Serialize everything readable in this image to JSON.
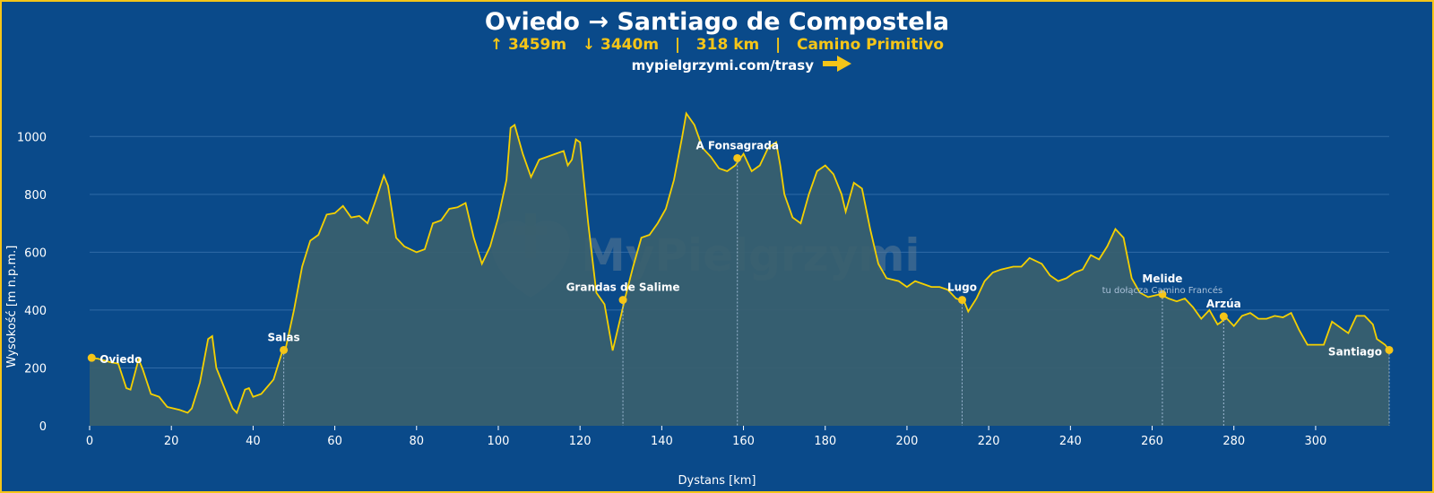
{
  "title": "Oviedo → Santiago de Compostela",
  "subtitle": {
    "ascent": "↑ 3459m",
    "descent": "↓ 3440m",
    "sep1": "|",
    "distance": "318 km",
    "sep2": "|",
    "route": "Camino Primitivo"
  },
  "link": "mypielgrzymi.com/trasy",
  "watermark": "MyPielgrzymi",
  "colors": {
    "background": "#0a4a8a",
    "border": "#f5c518",
    "line": "#f5d000",
    "fill": "#3a5f6e",
    "accent": "#f5c518",
    "grid": "#2f6aa6"
  },
  "icons": {
    "arrow": "arrow-right-icon",
    "watermark_logo": "heart-cross-logo"
  },
  "chart_data": {
    "type": "area",
    "xlabel": "Dystans [km]",
    "ylabel": "Wysokość [m n.p.m.]",
    "xlim": [
      0,
      318
    ],
    "ylim": [
      0,
      1100
    ],
    "xticks": [
      0,
      20,
      40,
      60,
      80,
      100,
      120,
      140,
      160,
      180,
      200,
      220,
      240,
      260,
      280,
      300
    ],
    "yticks": [
      0,
      200,
      400,
      600,
      800,
      1000
    ],
    "grid": true,
    "profile": [
      [
        0,
        235
      ],
      [
        2,
        232
      ],
      [
        5,
        220
      ],
      [
        7,
        215
      ],
      [
        9,
        130
      ],
      [
        10,
        125
      ],
      [
        12,
        230
      ],
      [
        13,
        195
      ],
      [
        15,
        110
      ],
      [
        17,
        100
      ],
      [
        19,
        65
      ],
      [
        22,
        55
      ],
      [
        24,
        45
      ],
      [
        25,
        60
      ],
      [
        27,
        150
      ],
      [
        29,
        300
      ],
      [
        30,
        310
      ],
      [
        31,
        200
      ],
      [
        33,
        130
      ],
      [
        35,
        60
      ],
      [
        36,
        45
      ],
      [
        38,
        125
      ],
      [
        39,
        130
      ],
      [
        40,
        100
      ],
      [
        42,
        110
      ],
      [
        45,
        160
      ],
      [
        47,
        250
      ],
      [
        48,
        270
      ],
      [
        50,
        400
      ],
      [
        52,
        550
      ],
      [
        54,
        640
      ],
      [
        56,
        660
      ],
      [
        58,
        730
      ],
      [
        60,
        735
      ],
      [
        62,
        760
      ],
      [
        64,
        720
      ],
      [
        66,
        725
      ],
      [
        68,
        700
      ],
      [
        70,
        780
      ],
      [
        72,
        865
      ],
      [
        73,
        830
      ],
      [
        75,
        650
      ],
      [
        77,
        620
      ],
      [
        80,
        600
      ],
      [
        82,
        610
      ],
      [
        84,
        700
      ],
      [
        86,
        710
      ],
      [
        88,
        750
      ],
      [
        90,
        755
      ],
      [
        92,
        770
      ],
      [
        94,
        650
      ],
      [
        96,
        560
      ],
      [
        98,
        620
      ],
      [
        100,
        720
      ],
      [
        102,
        850
      ],
      [
        103,
        1030
      ],
      [
        104,
        1040
      ],
      [
        106,
        940
      ],
      [
        108,
        860
      ],
      [
        110,
        920
      ],
      [
        112,
        930
      ],
      [
        114,
        940
      ],
      [
        116,
        950
      ],
      [
        117,
        900
      ],
      [
        118,
        920
      ],
      [
        119,
        990
      ],
      [
        120,
        980
      ],
      [
        122,
        700
      ],
      [
        124,
        460
      ],
      [
        126,
        420
      ],
      [
        128,
        260
      ],
      [
        130,
        380
      ],
      [
        131,
        440
      ],
      [
        133,
        550
      ],
      [
        135,
        650
      ],
      [
        137,
        660
      ],
      [
        139,
        700
      ],
      [
        141,
        750
      ],
      [
        143,
        850
      ],
      [
        145,
        1000
      ],
      [
        146,
        1080
      ],
      [
        148,
        1040
      ],
      [
        150,
        960
      ],
      [
        152,
        930
      ],
      [
        154,
        890
      ],
      [
        156,
        880
      ],
      [
        158,
        900
      ],
      [
        160,
        940
      ],
      [
        162,
        880
      ],
      [
        164,
        900
      ],
      [
        166,
        960
      ],
      [
        168,
        980
      ],
      [
        169,
        900
      ],
      [
        170,
        800
      ],
      [
        172,
        720
      ],
      [
        174,
        700
      ],
      [
        176,
        800
      ],
      [
        178,
        880
      ],
      [
        180,
        900
      ],
      [
        182,
        870
      ],
      [
        184,
        800
      ],
      [
        185,
        740
      ],
      [
        187,
        840
      ],
      [
        189,
        820
      ],
      [
        191,
        680
      ],
      [
        193,
        560
      ],
      [
        195,
        510
      ],
      [
        198,
        500
      ],
      [
        200,
        480
      ],
      [
        202,
        500
      ],
      [
        204,
        490
      ],
      [
        206,
        480
      ],
      [
        208,
        480
      ],
      [
        210,
        470
      ],
      [
        212,
        440
      ],
      [
        214,
        430
      ],
      [
        215,
        395
      ],
      [
        217,
        440
      ],
      [
        219,
        500
      ],
      [
        221,
        530
      ],
      [
        223,
        540
      ],
      [
        226,
        550
      ],
      [
        228,
        550
      ],
      [
        230,
        580
      ],
      [
        233,
        560
      ],
      [
        235,
        520
      ],
      [
        237,
        500
      ],
      [
        239,
        510
      ],
      [
        241,
        530
      ],
      [
        243,
        540
      ],
      [
        245,
        590
      ],
      [
        247,
        575
      ],
      [
        249,
        620
      ],
      [
        251,
        680
      ],
      [
        253,
        650
      ],
      [
        255,
        510
      ],
      [
        257,
        460
      ],
      [
        259,
        445
      ],
      [
        262,
        455
      ],
      [
        264,
        440
      ],
      [
        266,
        430
      ],
      [
        268,
        440
      ],
      [
        270,
        410
      ],
      [
        272,
        370
      ],
      [
        274,
        400
      ],
      [
        276,
        350
      ],
      [
        277,
        360
      ],
      [
        278,
        375
      ],
      [
        280,
        345
      ],
      [
        282,
        380
      ],
      [
        284,
        390
      ],
      [
        286,
        370
      ],
      [
        288,
        370
      ],
      [
        290,
        380
      ],
      [
        292,
        375
      ],
      [
        294,
        390
      ],
      [
        296,
        330
      ],
      [
        298,
        280
      ],
      [
        300,
        280
      ],
      [
        302,
        280
      ],
      [
        304,
        360
      ],
      [
        306,
        340
      ],
      [
        308,
        320
      ],
      [
        310,
        380
      ],
      [
        312,
        380
      ],
      [
        314,
        350
      ],
      [
        315,
        300
      ],
      [
        317,
        280
      ],
      [
        318,
        262
      ]
    ],
    "waypoints": [
      {
        "name": "Oviedo",
        "km": 0.5,
        "elev": 235,
        "note": ""
      },
      {
        "name": "Salas",
        "km": 47.5,
        "elev": 262,
        "note": ""
      },
      {
        "name": "Grandas de Salime",
        "km": 130.5,
        "elev": 435,
        "note": ""
      },
      {
        "name": "A Fonsagrada",
        "km": 158.5,
        "elev": 925,
        "note": ""
      },
      {
        "name": "Lugo",
        "km": 213.5,
        "elev": 435,
        "note": ""
      },
      {
        "name": "Melide",
        "km": 262.5,
        "elev": 455,
        "note": "tu dołącza Camino Francés"
      },
      {
        "name": "Arzúa",
        "km": 277.5,
        "elev": 378,
        "note": ""
      },
      {
        "name": "Santiago",
        "km": 318,
        "elev": 262,
        "note": ""
      }
    ]
  }
}
